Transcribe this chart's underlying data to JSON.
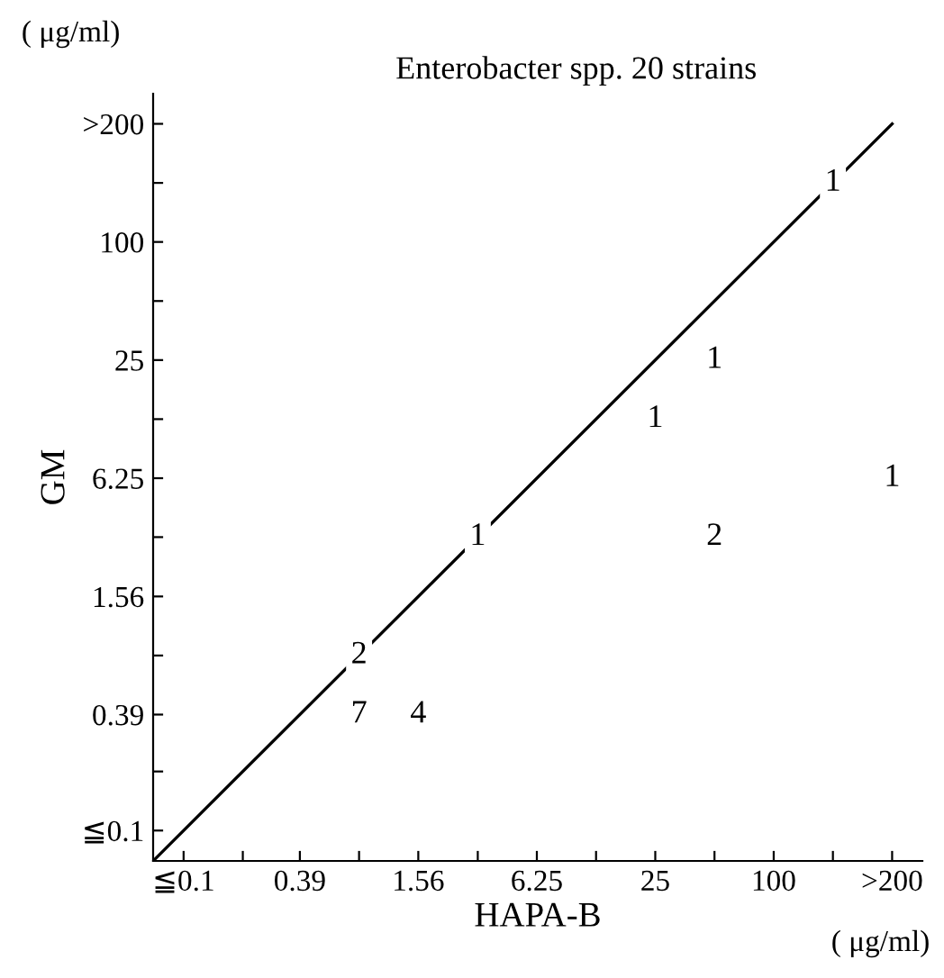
{
  "chart_data": {
    "type": "line",
    "title": "Enterobacter spp. 20 strains",
    "xlabel": "HAPA-B",
    "ylabel": "GM",
    "log": "xy",
    "xlim": [
      0.07,
      570
    ],
    "ylim": [
      0.07,
      570
    ],
    "xticks": [
      {
        "value": 0.1,
        "label": "≦0.1"
      },
      {
        "value": 0.2,
        "label": null
      },
      0.39,
      {
        "value": 0.78,
        "label": null
      },
      1.56,
      {
        "value": 3.13,
        "label": null
      },
      6.25,
      {
        "value": 12.5,
        "label": null
      },
      25,
      {
        "value": 50,
        "label": null
      },
      100,
      {
        "value": 200,
        "label": null
      },
      {
        "value": 400,
        "label": ">200"
      }
    ],
    "yticks": [
      {
        "value": 0.1,
        "label": "≦0.1"
      },
      {
        "value": 0.2,
        "label": null
      },
      0.39,
      {
        "value": 0.78,
        "label": null
      },
      1.56,
      {
        "value": 3.13,
        "label": null
      },
      6.25,
      {
        "value": 12.5,
        "label": null
      },
      25,
      {
        "value": 50,
        "label": null
      },
      100,
      {
        "value": 200,
        "label": null
      },
      {
        "value": 400,
        "label": ">200"
      }
    ],
    "grid": false,
    "legend": false,
    "marker": "none",
    "line_style": "solid",
    "series": [
      {
        "color": "#000000",
        "x": [
          0.07,
          400
        ],
        "values": [
          0.07,
          400
        ]
      }
    ],
    "annotations": [
      "( μg/ml)",
      "( μg/ml)",
      {
        "text": "7",
        "x": 0.78,
        "y": 0.39
      },
      {
        "text": "4",
        "x": 1.56,
        "y": 0.39
      },
      {
        "text": "2",
        "x": 0.78,
        "y": 0.78
      },
      {
        "text": "1",
        "x": 3.13,
        "y": 3.13
      },
      {
        "text": "1",
        "x": 25,
        "y": 12.5
      },
      {
        "text": "1",
        "x": 50,
        "y": 25
      },
      {
        "text": "2",
        "x": 50,
        "y": 3.13
      },
      {
        "text": "1",
        "x": 400,
        "y": 6.25
      },
      {
        "text": "1",
        "x": 200,
        "y": 200
      }
    ]
  }
}
